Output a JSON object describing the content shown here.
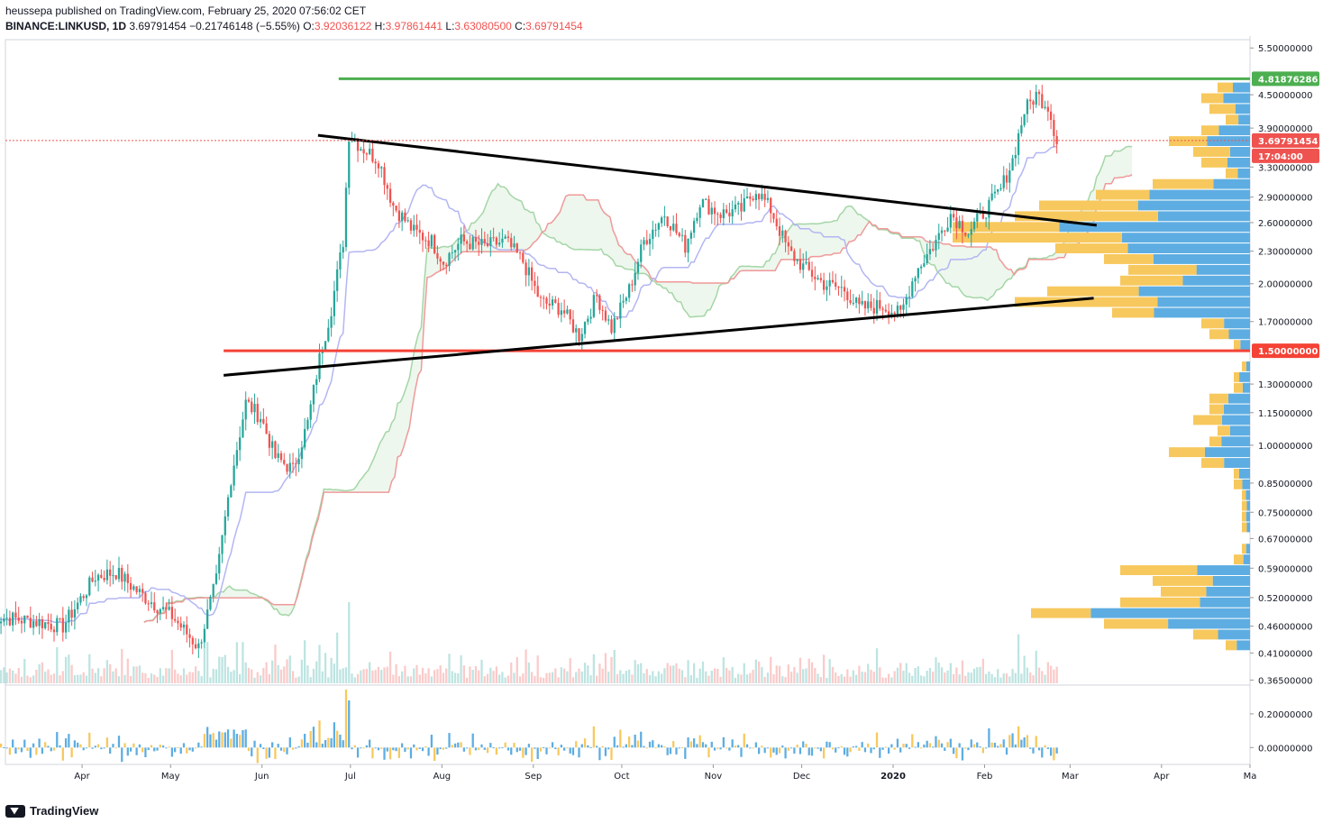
{
  "header": {
    "publisher": "heussepa published on TradingView.com, February 25, 2020 07:56:02 CET",
    "symbol": "BINANCE:LINKUSD, 1D",
    "last": "3.69791454",
    "change": "−0.21746148 (−5.55%)",
    "o_label": "O:",
    "o": "3.92036122",
    "h_label": "H:",
    "h": "3.97861441",
    "l_label": "L:",
    "l": "3.63080500",
    "c_label": "C:",
    "c": "3.69791454"
  },
  "brand": "TradingView",
  "colors": {
    "up": "#26a69a",
    "down": "#ef5350",
    "resistance": "#4caf50",
    "support": "#f44336",
    "trend": "#000000",
    "vp_up": "#5dade2",
    "vp_down": "#f7c85d"
  },
  "chart_data": {
    "type": "candlestick",
    "symbol": "BINANCE:LINKUSD",
    "interval": "1D",
    "price_axis": {
      "scale": "log",
      "ticks": [
        "5.50000000",
        "4.50000000",
        "3.90000000",
        "3.30000000",
        "2.90000000",
        "2.60000000",
        "2.30000000",
        "2.00000000",
        "1.70000000",
        "1.30000000",
        "1.15000000",
        "1.00000000",
        "0.85000000",
        "0.75000000",
        "0.67000000",
        "0.59000000",
        "0.52000000",
        "0.46000000",
        "0.41000000",
        "0.36500000"
      ],
      "tick_values": [
        5.5,
        4.5,
        3.9,
        3.3,
        2.9,
        2.6,
        2.3,
        2.0,
        1.7,
        1.3,
        1.15,
        1.0,
        0.85,
        0.75,
        0.67,
        0.59,
        0.52,
        0.46,
        0.41,
        0.365
      ],
      "ylim": [
        0.36,
        5.7
      ]
    },
    "x_axis": {
      "ticks": [
        "Apr",
        "May",
        "Jun",
        "Jul",
        "Aug",
        "Sep",
        "Oct",
        "Nov",
        "Dec",
        "2020",
        "Feb",
        "Mar",
        "Apr",
        "Ma"
      ],
      "tick_dates": [
        "2019-04-01",
        "2019-05-01",
        "2019-06-01",
        "2019-07-01",
        "2019-08-01",
        "2019-09-01",
        "2019-10-01",
        "2019-11-01",
        "2019-12-01",
        "2020-01-01",
        "2020-02-01",
        "2020-03-01",
        "2020-04-01",
        "2020-05-01"
      ]
    },
    "labels": [
      {
        "text": "4.81876286",
        "value": 4.81876286,
        "color": "#4caf50"
      },
      {
        "text": "3.69791454",
        "value": 3.69791454,
        "color": "#ef5350"
      },
      {
        "text": "17:04:00",
        "color": "#ef5350"
      },
      {
        "text": "1.50000000",
        "value": 1.5,
        "color": "#f44336"
      }
    ],
    "horizontal_lines": [
      {
        "value": 4.81876286,
        "from": "2019-06-27",
        "to": "2020-05-01",
        "color": "#4caf50"
      },
      {
        "value": 1.5,
        "from": "2019-05-19",
        "to": "2020-05-01",
        "color": "#f44336"
      }
    ],
    "trend_lines": [
      {
        "from": [
          "2019-06-20",
          3.78
        ],
        "to": [
          "2020-03-10",
          2.57
        ]
      },
      {
        "from": [
          "2019-05-19",
          1.35
        ],
        "to": [
          "2020-03-09",
          1.88
        ]
      }
    ],
    "price_path": [
      [
        "2019-03-01",
        0.48
      ],
      [
        "2019-03-15",
        0.47
      ],
      [
        "2019-03-25",
        0.46
      ],
      [
        "2019-04-05",
        0.57
      ],
      [
        "2019-04-12",
        0.58
      ],
      [
        "2019-04-20",
        0.53
      ],
      [
        "2019-05-01",
        0.48
      ],
      [
        "2019-05-10",
        0.42
      ],
      [
        "2019-05-16",
        0.56
      ],
      [
        "2019-05-21",
        0.87
      ],
      [
        "2019-05-26",
        1.2
      ],
      [
        "2019-05-31",
        1.13
      ],
      [
        "2019-06-05",
        0.95
      ],
      [
        "2019-06-11",
        0.9
      ],
      [
        "2019-06-16",
        1.1
      ],
      [
        "2019-06-20",
        1.45
      ],
      [
        "2019-06-24",
        1.8
      ],
      [
        "2019-06-28",
        2.4
      ],
      [
        "2019-06-30",
        3.8
      ],
      [
        "2019-07-04",
        3.6
      ],
      [
        "2019-07-10",
        3.4
      ],
      [
        "2019-07-15",
        2.8
      ],
      [
        "2019-07-22",
        2.5
      ],
      [
        "2019-07-28",
        2.4
      ],
      [
        "2019-08-01",
        2.2
      ],
      [
        "2019-08-07",
        2.4
      ],
      [
        "2019-08-15",
        2.35
      ],
      [
        "2019-08-22",
        2.4
      ],
      [
        "2019-08-28",
        2.2
      ],
      [
        "2019-09-03",
        1.85
      ],
      [
        "2019-09-10",
        1.8
      ],
      [
        "2019-09-16",
        1.6
      ],
      [
        "2019-09-22",
        1.9
      ],
      [
        "2019-09-27",
        1.65
      ],
      [
        "2019-10-03",
        1.95
      ],
      [
        "2019-10-08",
        2.4
      ],
      [
        "2019-10-15",
        2.7
      ],
      [
        "2019-10-22",
        2.35
      ],
      [
        "2019-10-27",
        2.85
      ],
      [
        "2019-11-03",
        2.7
      ],
      [
        "2019-11-10",
        2.75
      ],
      [
        "2019-11-15",
        3.0
      ],
      [
        "2019-11-20",
        2.75
      ],
      [
        "2019-11-26",
        2.3
      ],
      [
        "2019-12-01",
        2.15
      ],
      [
        "2019-12-08",
        2.0
      ],
      [
        "2019-12-15",
        1.95
      ],
      [
        "2019-12-20",
        1.8
      ],
      [
        "2019-12-28",
        1.82
      ],
      [
        "2020-01-03",
        1.75
      ],
      [
        "2020-01-08",
        2.1
      ],
      [
        "2020-01-15",
        2.4
      ],
      [
        "2020-01-20",
        2.7
      ],
      [
        "2020-01-26",
        2.5
      ],
      [
        "2020-02-01",
        2.75
      ],
      [
        "2020-02-06",
        3.0
      ],
      [
        "2020-02-10",
        3.4
      ],
      [
        "2020-02-14",
        4.2
      ],
      [
        "2020-02-18",
        4.5
      ],
      [
        "2020-02-22",
        4.3
      ],
      [
        "2020-02-25",
        3.7
      ]
    ],
    "oscillator": {
      "ticks": [
        "0.20000000",
        "0.00000000"
      ],
      "tick_values": [
        0.2,
        0.0
      ],
      "ylim": [
        -0.1,
        0.36
      ]
    }
  }
}
